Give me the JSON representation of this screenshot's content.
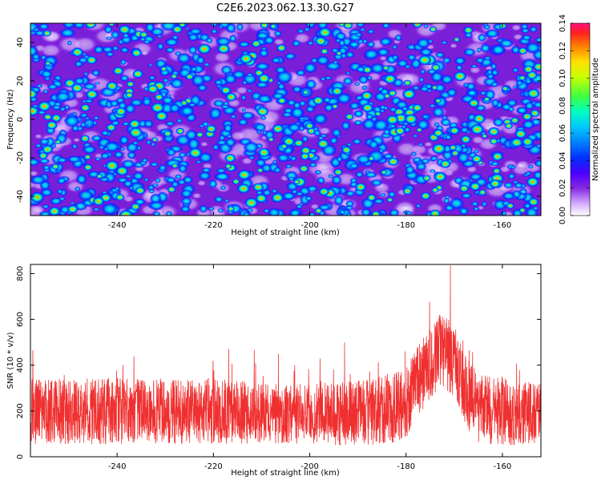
{
  "title": "C2E6.2023.062.13.30.G27",
  "chart_data": [
    {
      "type": "heatmap",
      "xlabel": "Height of straight line (km)",
      "ylabel": "Frequency (Hz)",
      "xlim": [
        -258,
        -152
      ],
      "ylim": [
        -50,
        50
      ],
      "xticks": [
        -240,
        -220,
        -200,
        -180,
        -160
      ],
      "yticks": [
        -40,
        -20,
        0,
        20,
        40
      ],
      "colorbar": {
        "label": "Normalized spectral amplitude",
        "range": [
          0,
          0.14
        ],
        "ticks": [
          "0.00",
          "0.02",
          "0.04",
          "0.06",
          "0.08",
          "0.10",
          "0.12",
          "0.14"
        ]
      }
    },
    {
      "type": "line",
      "xlabel": "Height of straight line (km)",
      "ylabel": "SNR (10 * v/v)",
      "xlim": [
        -258,
        -152
      ],
      "ylim": [
        0,
        840
      ],
      "xticks": [
        -240,
        -220,
        -200,
        -180,
        -160
      ],
      "yticks": [
        0,
        200,
        400,
        600,
        800
      ],
      "series": [
        {
          "color": "#f03030",
          "envelope": {
            "x": [
              -258,
              -250,
              -240,
              -230,
              -220,
              -210,
              -200,
              -190,
              -185,
              -180,
              -176,
              -173,
              -170,
              -168,
              -165,
              -160,
              -155,
              -152
            ],
            "mean": [
              200,
              195,
              200,
              195,
              200,
              190,
              185,
              190,
              200,
              240,
              380,
              460,
              420,
              300,
              210,
              200,
              190,
              200
            ],
            "spread": [
              230,
              230,
              230,
              220,
              230,
              210,
              210,
              230,
              240,
              260,
              250,
              260,
              260,
              250,
              240,
              240,
              220,
              220
            ]
          },
          "peak": {
            "x": -170.8,
            "y": 835
          }
        }
      ]
    }
  ]
}
